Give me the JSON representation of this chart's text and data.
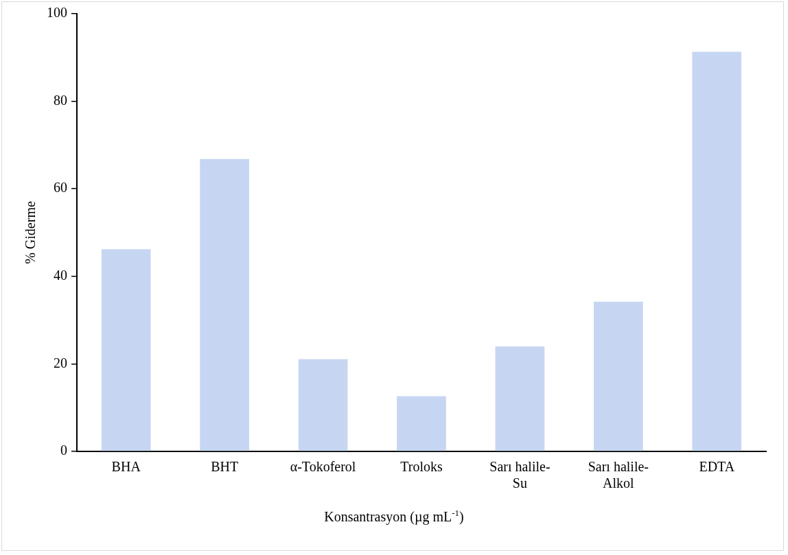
{
  "chart_data": {
    "type": "bar",
    "categories": [
      "BHA",
      "BHT",
      "α-Tokoferol",
      "Troloks",
      "Sarı halile-Su",
      "Sarı halile-Alkol",
      "EDTA"
    ],
    "values": [
      46.2,
      66.8,
      21.1,
      12.6,
      24.0,
      34.2,
      91.3
    ],
    "color": "#c6d6f2",
    "xlabel": "Konsantrasyon  (µg mL$^{-1}$)",
    "ylabel": "% Giderme",
    "ylim": [
      0,
      100
    ],
    "yticks": [
      0,
      20,
      40,
      60,
      80,
      100
    ],
    "grid": false,
    "legend": false
  }
}
